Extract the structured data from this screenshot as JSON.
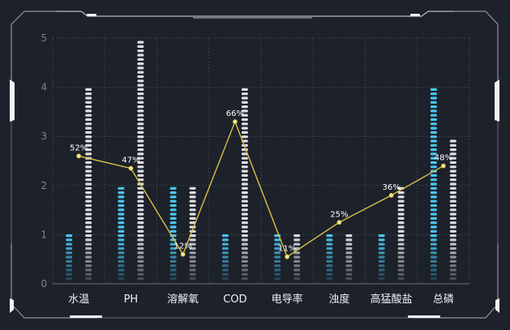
{
  "chart_data": {
    "type": "bar",
    "categories": [
      "水温",
      "PH",
      "溶解氧",
      "COD",
      "电导率",
      "浊度",
      "高猛酸盐",
      "总磷"
    ],
    "series": [
      {
        "type": "bar",
        "values": [
          1,
          2,
          2,
          1,
          1,
          1,
          1,
          4
        ]
      },
      {
        "type": "bar",
        "values": [
          4,
          5,
          2,
          4,
          1,
          1,
          2,
          3
        ]
      },
      {
        "type": "line",
        "values": [
          2.6,
          2.35,
          0.6,
          3.3,
          0.55,
          1.25,
          1.8,
          2.4
        ],
        "labels": [
          "52%",
          "47%",
          "12%",
          "66%",
          "11%",
          "25%",
          "36%",
          "48%"
        ]
      }
    ],
    "yticks": [
      "0",
      "1",
      "2",
      "3",
      "4",
      "5"
    ],
    "ylim": [
      0,
      5
    ],
    "grid": true,
    "colors": {
      "series1": "#4cc6f2",
      "series2": "#dcdee2",
      "line": "#d9c244",
      "background": "#1c212a"
    }
  }
}
